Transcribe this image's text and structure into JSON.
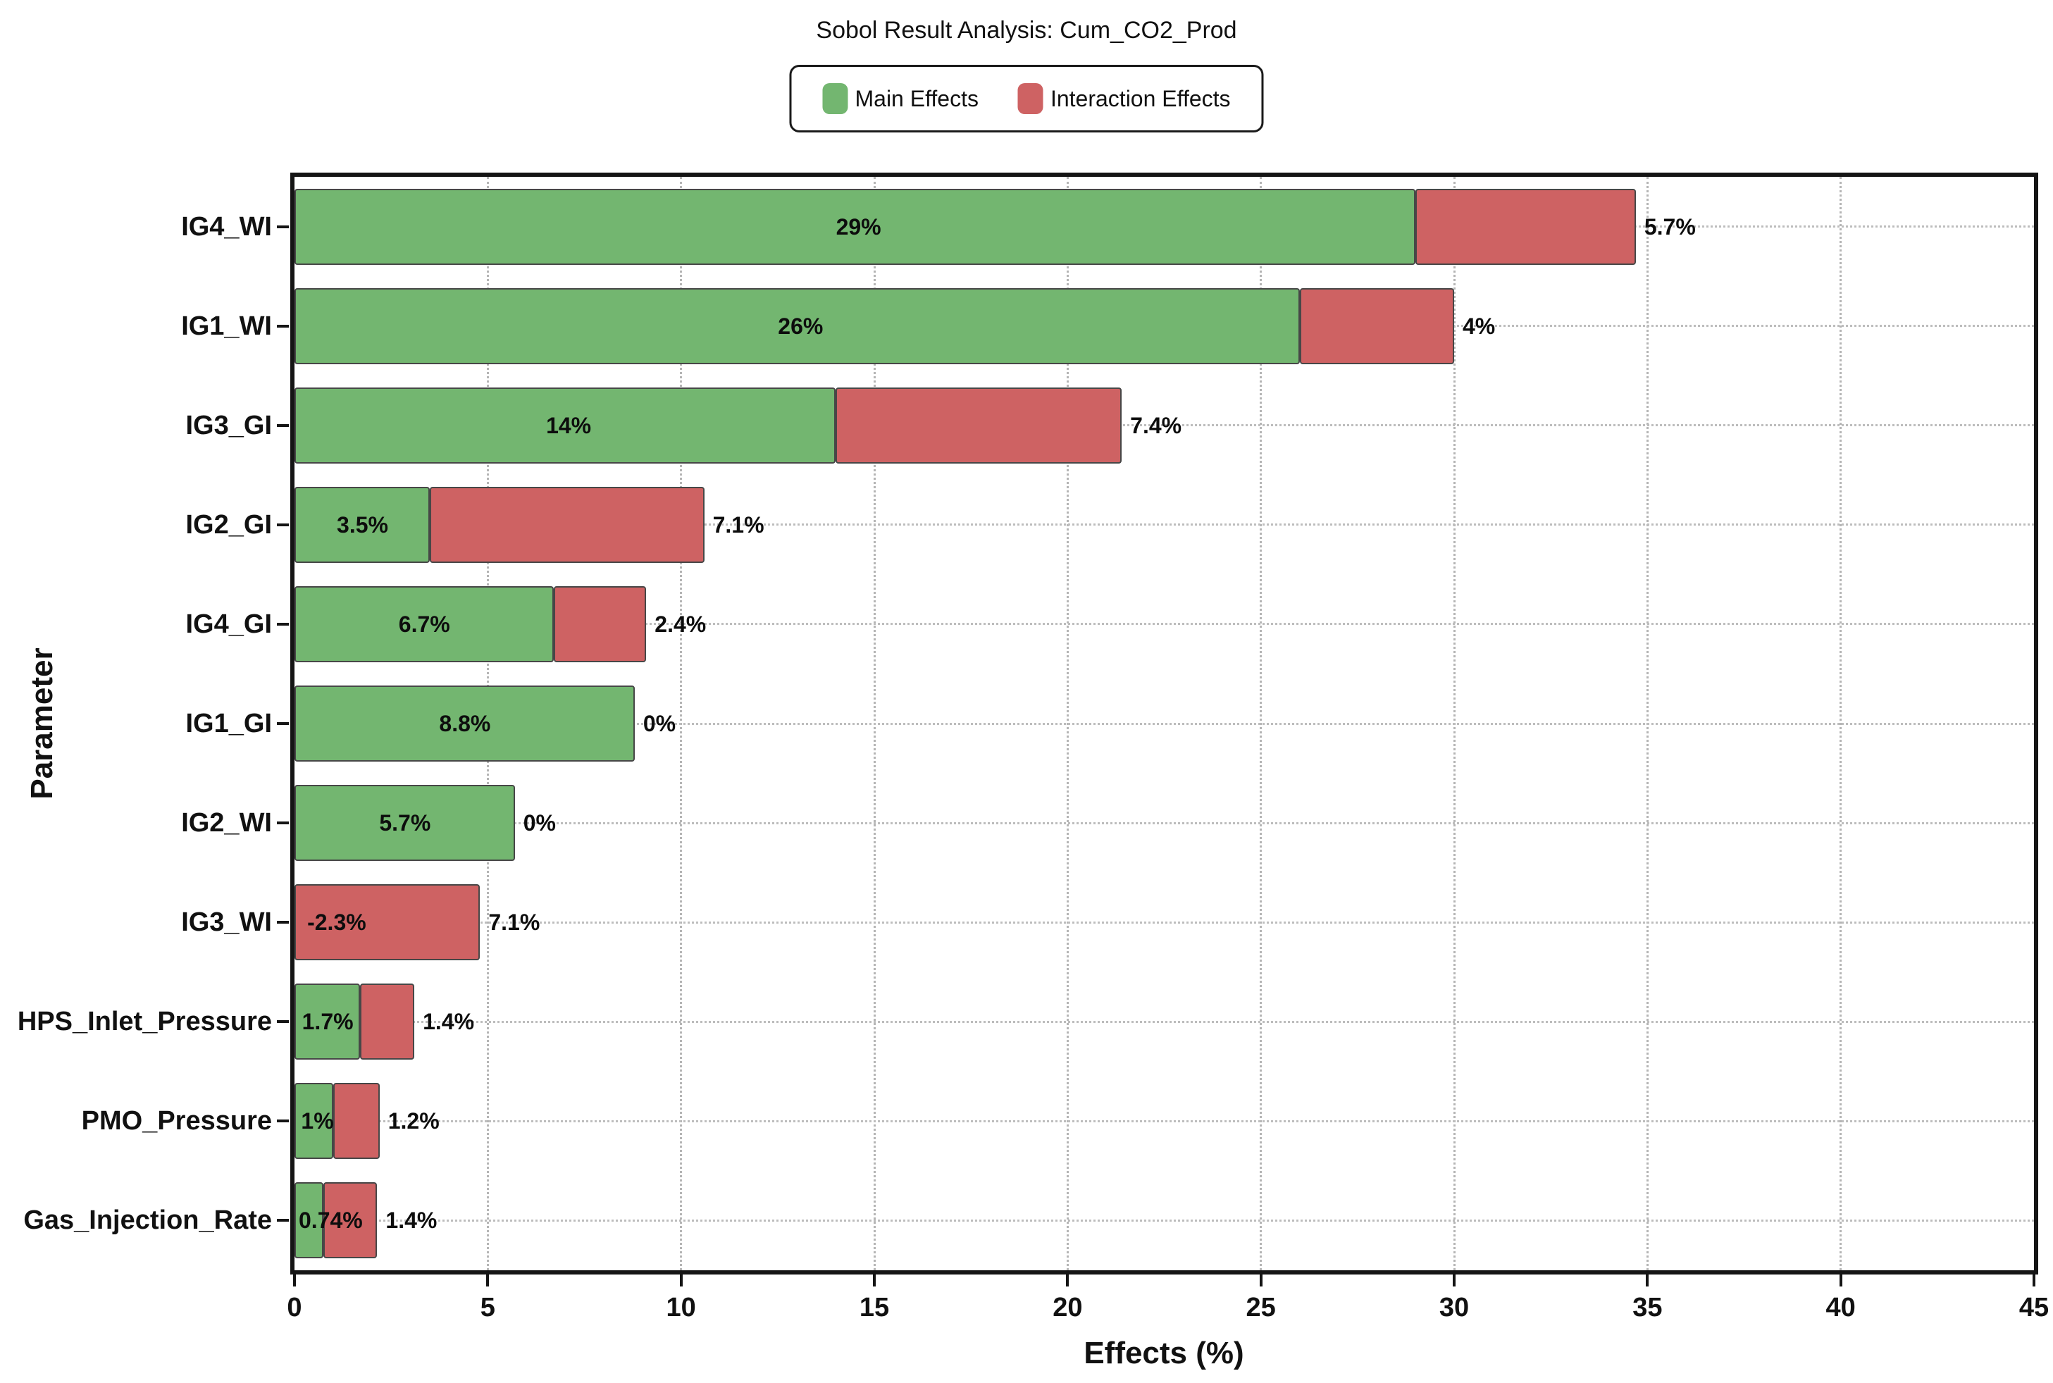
{
  "legend": {
    "main_label": "Main Effects",
    "interaction_label": "Interaction Effects"
  },
  "chart_data": {
    "type": "bar",
    "orientation": "horizontal",
    "stacked": true,
    "title": "Sobol Result Analysis: Cum_CO2_Prod",
    "xlabel": "Effects (%)",
    "ylabel": "Parameter",
    "xlim": [
      0,
      45
    ],
    "xticks": [
      0,
      5,
      10,
      15,
      20,
      25,
      30,
      35,
      40,
      45
    ],
    "grid": "dotted vertical at x ticks and horizontal at category centers",
    "legend_position": "top-center",
    "colors": {
      "main": "#73b670",
      "interaction": "#ce6263",
      "bar_border": "#474747",
      "grid": "#b5b5b5",
      "axis": "#151515"
    },
    "categories": [
      "IG4_WI",
      "IG1_WI",
      "IG3_GI",
      "IG2_GI",
      "IG4_GI",
      "IG1_GI",
      "IG2_WI",
      "IG3_WI",
      "HPS_Inlet_Pressure",
      "PMO_Pressure",
      "Gas_Injection_Rate"
    ],
    "series": [
      {
        "name": "Main Effects",
        "values": [
          29,
          26,
          14,
          3.5,
          6.7,
          8.8,
          5.7,
          -2.3,
          1.7,
          1,
          0.74
        ],
        "labels": [
          "29%",
          "26%",
          "14%",
          "3.5%",
          "6.7%",
          "8.8%",
          "5.7%",
          "-2.3%",
          "1.7%",
          "1%",
          "0.74%"
        ]
      },
      {
        "name": "Interaction Effects",
        "values": [
          5.7,
          4,
          7.4,
          7.1,
          2.4,
          0,
          0,
          7.1,
          1.4,
          1.2,
          1.4
        ],
        "labels": [
          "5.7%",
          "4%",
          "7.4%",
          "7.1%",
          "2.4%",
          "0%",
          "0%",
          "7.1%",
          "1.4%",
          "1.2%",
          "1.4%"
        ]
      }
    ]
  }
}
